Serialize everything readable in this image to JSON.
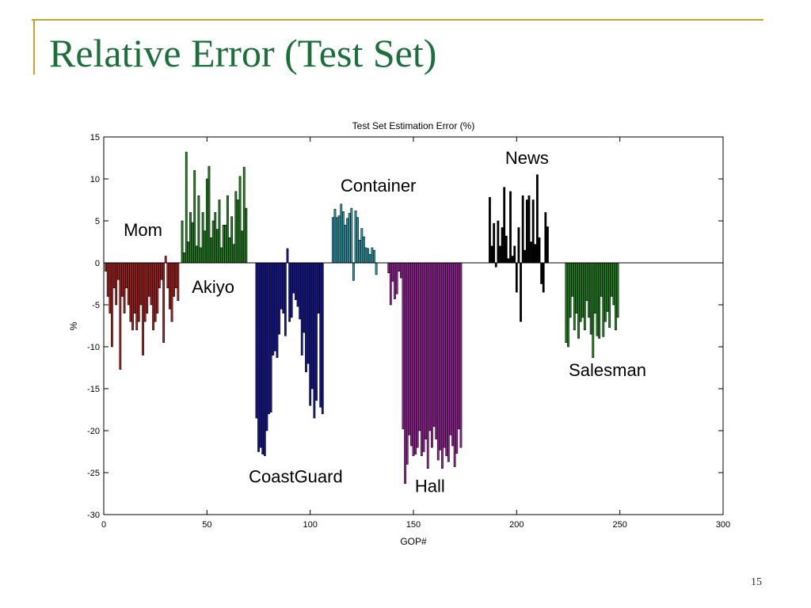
{
  "slide": {
    "title": "Relative Error (Test Set)",
    "page_number": "15"
  },
  "colors": {
    "accent_rule": "#c9a227",
    "title": "#1b6f3a"
  },
  "chart_data": {
    "type": "bar",
    "title": "Test Set Estimation Error (%)",
    "xlabel": "GOP#",
    "ylabel": "%",
    "xlim": [
      0,
      300
    ],
    "ylim": [
      -30,
      15
    ],
    "xticks": [
      0,
      50,
      100,
      150,
      200,
      250,
      300
    ],
    "yticks": [
      15,
      10,
      5,
      0,
      -5,
      -10,
      -15,
      -20,
      -25,
      -30
    ],
    "grid": false,
    "legend": "none",
    "series": [
      {
        "name": "Mom",
        "color": "#b22222",
        "x_start": 1,
        "values": [
          -1,
          -4,
          -6,
          -10,
          -3,
          -5,
          -2,
          -12.7,
          -4,
          -6,
          -3,
          -5,
          -7,
          -8,
          -6,
          -8,
          -7,
          -5,
          -11,
          -7,
          -6,
          -4,
          -5,
          -8,
          -7,
          -6,
          -3,
          -2,
          -9.5,
          0.8,
          -3,
          -5.5,
          -7,
          -4,
          -3,
          -4.5
        ]
      },
      {
        "name": "Akiyo",
        "color": "#228b22",
        "x_start": 38,
        "values": [
          5,
          1.2,
          13.2,
          2.5,
          6,
          4.8,
          11,
          2,
          8,
          1.8,
          6,
          3.8,
          10,
          11.5,
          3,
          5,
          6,
          4,
          7.5,
          1.8,
          4.5,
          4.5,
          8,
          3,
          5.5,
          2.2,
          8.5,
          7.5,
          10.3,
          3.8,
          11.4,
          6.5
        ]
      },
      {
        "name": "CoastGuard",
        "color": "#1a1a9e",
        "x_start": 74,
        "values": [
          -18.5,
          -22.5,
          -22,
          -22.8,
          -23,
          -20,
          -18,
          -17.8,
          -11,
          -10.5,
          -11.3,
          -8.5,
          -5.5,
          -6,
          -8.7,
          1.7,
          -7,
          -6.5,
          -3.6,
          -4.4,
          -5.2,
          -6.7,
          -11,
          -8.3,
          -13,
          -12,
          -17,
          -15,
          -18.5,
          -16.4,
          -6,
          -17.2,
          -18
        ]
      },
      {
        "name": "Container",
        "color": "#2aa6b6",
        "x_start": 111,
        "values": [
          5.4,
          6.4,
          5.4,
          5.6,
          7,
          6.1,
          4.5,
          5.3,
          5.9,
          6.5,
          -2.1,
          6.2,
          5.4,
          2.7,
          4.1,
          3.1,
          1.8,
          1.7,
          1,
          1.8,
          1.5,
          -1.4
        ]
      },
      {
        "name": "Hall",
        "color": "#a223a2",
        "x_start": 138,
        "values": [
          -1.2,
          -5,
          -2.2,
          -4.3,
          -3.7,
          -1,
          -1.8,
          -19.8,
          -26.3,
          -24,
          -20.5,
          -21.8,
          -23,
          -22.8,
          -22,
          -20,
          -23,
          -22.5,
          -21,
          -24.5,
          -20,
          -22,
          -19.5,
          -21,
          -23.5,
          -22.3,
          -24.5,
          -22,
          -23,
          -23.7,
          -20.5,
          -21.8,
          -24.3,
          -22.7,
          -19.8,
          -22
        ]
      },
      {
        "name": "News",
        "color": "#000000",
        "x_start": 187,
        "values": [
          7.8,
          2,
          4.7,
          -0.5,
          5,
          2,
          4.2,
          9,
          3.2,
          0.5,
          8.5,
          0.8,
          2,
          -3.5,
          4.2,
          -7,
          8,
          1.5,
          7.5,
          8,
          2.5,
          7.5,
          2.2,
          10.5,
          3,
          -2.5,
          -3.5,
          6,
          4.3
        ]
      },
      {
        "name": "Salesman",
        "color": "#228b22",
        "x_start": 224,
        "values": [
          -9.5,
          -10,
          -6.5,
          -4,
          -8,
          -6,
          -9,
          -7,
          -6.5,
          -8,
          -4.5,
          -6.5,
          -8.5,
          -11.3,
          -6,
          -8.7,
          -9,
          -4,
          -8.8,
          -7,
          -5.8,
          -7.7,
          -4,
          -5,
          -8,
          -6.5
        ]
      }
    ],
    "annotations": [
      {
        "text": "Mom",
        "x": 19,
        "y": 3.2
      },
      {
        "text": "Akiyo",
        "x": 53,
        "y": -3.6
      },
      {
        "text": "CoastGuard",
        "x": 93,
        "y": -26.2
      },
      {
        "text": "Container",
        "x": 133,
        "y": 8.5
      },
      {
        "text": "Hall",
        "x": 158,
        "y": -27.3
      },
      {
        "text": "News",
        "x": 205,
        "y": 11.8
      },
      {
        "text": "Salesman",
        "x": 244,
        "y": -13.5
      }
    ]
  }
}
